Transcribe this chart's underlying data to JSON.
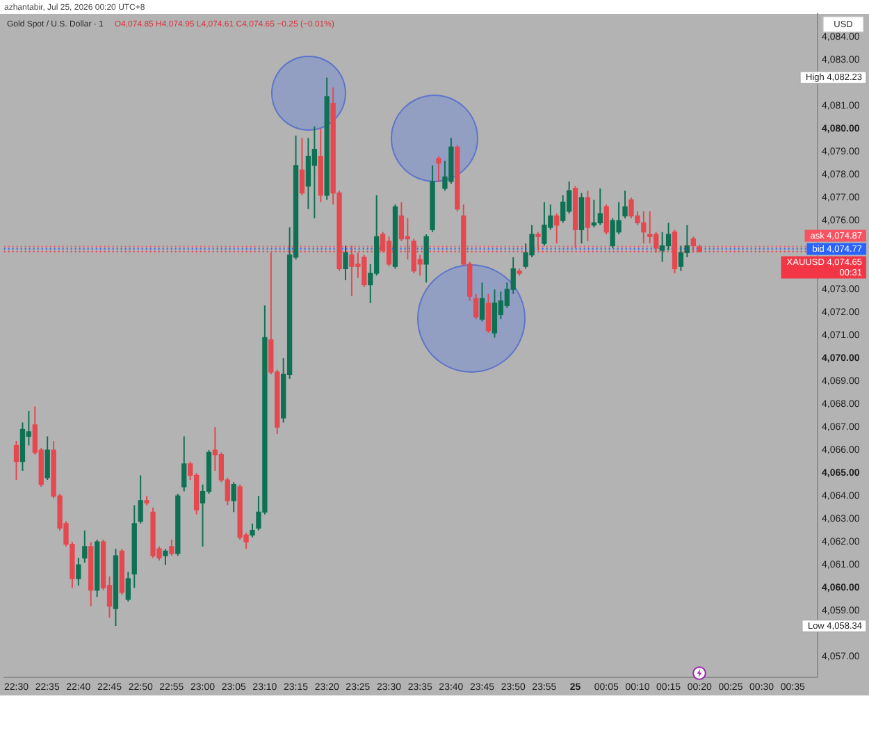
{
  "chart_data": {
    "type": "candlestick",
    "title": "Gold Spot / U.S. Dollar · 1",
    "subtitle": "O4,074.85 H4,074.95 L4,074.61 C4,074.65 −0.25 (−0.01%)",
    "ylabel": "USD",
    "annotations": [
      "azhantabir, Jul 25, 2026 00:20 UTC+8",
      "00:31",
      "High 4,082.23",
      "Low 4,058.34"
    ],
    "x": [
      "2026-07-24T22:30",
      "2026-07-24T22:31",
      "2026-07-24T22:32",
      "2026-07-24T22:33",
      "2026-07-24T22:34",
      "2026-07-24T22:35",
      "2026-07-24T22:36",
      "2026-07-24T22:37",
      "2026-07-24T22:38",
      "2026-07-24T22:39",
      "2026-07-24T22:40",
      "2026-07-24T22:41",
      "2026-07-24T22:42",
      "2026-07-24T22:43",
      "2026-07-24T22:44",
      "2026-07-24T22:45",
      "2026-07-24T22:46",
      "2026-07-24T22:47",
      "2026-07-24T22:48",
      "2026-07-24T22:49",
      "2026-07-24T22:50",
      "2026-07-24T22:51",
      "2026-07-24T22:52",
      "2026-07-24T22:53",
      "2026-07-24T22:54",
      "2026-07-24T22:55",
      "2026-07-24T22:56",
      "2026-07-24T22:57",
      "2026-07-24T22:58",
      "2026-07-24T22:59",
      "2026-07-24T23:00",
      "2026-07-24T23:01",
      "2026-07-24T23:02",
      "2026-07-24T23:03",
      "2026-07-24T23:04",
      "2026-07-24T23:05",
      "2026-07-24T23:06",
      "2026-07-24T23:07",
      "2026-07-24T23:08",
      "2026-07-24T23:09",
      "2026-07-24T23:10",
      "2026-07-24T23:11",
      "2026-07-24T23:12",
      "2026-07-24T23:13",
      "2026-07-24T23:14",
      "2026-07-24T23:15",
      "2026-07-24T23:16",
      "2026-07-24T23:17",
      "2026-07-24T23:18",
      "2026-07-24T23:19",
      "2026-07-24T23:20",
      "2026-07-24T23:21",
      "2026-07-24T23:22",
      "2026-07-24T23:23",
      "2026-07-24T23:24",
      "2026-07-24T23:25",
      "2026-07-24T23:26",
      "2026-07-24T23:27",
      "2026-07-24T23:28",
      "2026-07-24T23:29",
      "2026-07-24T23:30",
      "2026-07-24T23:31",
      "2026-07-24T23:32",
      "2026-07-24T23:33",
      "2026-07-24T23:34",
      "2026-07-24T23:35",
      "2026-07-24T23:36",
      "2026-07-24T23:37",
      "2026-07-24T23:38",
      "2026-07-24T23:39",
      "2026-07-24T23:40",
      "2026-07-24T23:41",
      "2026-07-24T23:42",
      "2026-07-24T23:43",
      "2026-07-24T23:44",
      "2026-07-24T23:45",
      "2026-07-24T23:46",
      "2026-07-24T23:47",
      "2026-07-24T23:48",
      "2026-07-24T23:49",
      "2026-07-24T23:50",
      "2026-07-24T23:51",
      "2026-07-24T23:52",
      "2026-07-24T23:53",
      "2026-07-24T23:54",
      "2026-07-24T23:55",
      "2026-07-24T23:56",
      "2026-07-24T23:57",
      "2026-07-24T23:58",
      "2026-07-24T23:59",
      "2026-07-25T00:00",
      "2026-07-25T00:01",
      "2026-07-25T00:02",
      "2026-07-25T00:03",
      "2026-07-25T00:04",
      "2026-07-25T00:05",
      "2026-07-25T00:06",
      "2026-07-25T00:07",
      "2026-07-25T00:08",
      "2026-07-25T00:09",
      "2026-07-25T00:10",
      "2026-07-25T00:11",
      "2026-07-25T00:12",
      "2026-07-25T00:13",
      "2026-07-25T00:14",
      "2026-07-25T00:15",
      "2026-07-25T00:16",
      "2026-07-25T00:17",
      "2026-07-25T00:18",
      "2026-07-25T00:19",
      "2026-07-25T00:20"
    ],
    "ohlc": [
      [
        4066.2,
        4066.4,
        4064.7,
        4065.5
      ],
      [
        4065.5,
        4067.2,
        4065.1,
        4066.9
      ],
      [
        4066.6,
        4067.7,
        4066.2,
        4066.8
      ],
      [
        4067.1,
        4067.9,
        4065.8,
        4065.9
      ],
      [
        4066.0,
        4066.1,
        4064.4,
        4064.5
      ],
      [
        4064.8,
        4066.6,
        4064.7,
        4066.0
      ],
      [
        4066.0,
        4066.4,
        4063.9,
        4064.0
      ],
      [
        4064.0,
        4064.1,
        4062.5,
        4062.6
      ],
      [
        4062.8,
        4062.9,
        4061.8,
        4061.9
      ],
      [
        4061.9,
        4062.0,
        4060.0,
        4060.4
      ],
      [
        4060.4,
        4061.3,
        4060.1,
        4061.0
      ],
      [
        4061.3,
        4062.5,
        4061.1,
        4061.8
      ],
      [
        4061.8,
        4062.0,
        4059.2,
        4059.9
      ],
      [
        4059.9,
        4062.1,
        4059.6,
        4062.0
      ],
      [
        4062.0,
        4062.1,
        4059.9,
        4060.0
      ],
      [
        4060.1,
        4060.5,
        4058.7,
        4059.2
      ],
      [
        4059.1,
        4061.7,
        4058.34,
        4061.4
      ],
      [
        4061.6,
        4061.7,
        4059.7,
        4059.8
      ],
      [
        4059.5,
        4060.7,
        4059.4,
        4060.4
      ],
      [
        4060.6,
        4063.6,
        4060.0,
        4062.8
      ],
      [
        4062.9,
        4064.9,
        4062.8,
        4063.8
      ],
      [
        4063.8,
        4064.0,
        4063.6,
        4063.7
      ],
      [
        4063.3,
        4063.5,
        4061.3,
        4061.4
      ],
      [
        4061.7,
        4061.8,
        4061.2,
        4061.3
      ],
      [
        4061.4,
        4061.7,
        4061.0,
        4061.6
      ],
      [
        4061.8,
        4062.1,
        4061.4,
        4061.5
      ],
      [
        4061.5,
        4064.1,
        4061.4,
        4064.0
      ],
      [
        4064.4,
        4066.6,
        4064.2,
        4065.4
      ],
      [
        4065.4,
        4065.5,
        4064.7,
        4064.9
      ],
      [
        4064.9,
        4065.0,
        4063.2,
        4063.4
      ],
      [
        4063.7,
        4064.5,
        4061.8,
        4064.2
      ],
      [
        4064.2,
        4066.0,
        4064.1,
        4065.9
      ],
      [
        4066.0,
        4067.0,
        4065.1,
        4065.8
      ],
      [
        4065.8,
        4065.9,
        4064.6,
        4064.7
      ],
      [
        4064.7,
        4064.8,
        4063.6,
        4063.8
      ],
      [
        4063.8,
        4064.6,
        4063.3,
        4064.5
      ],
      [
        4064.4,
        4064.5,
        4062.1,
        4062.2
      ],
      [
        4062.3,
        4062.4,
        4061.7,
        4062.0
      ],
      [
        4062.3,
        4062.8,
        4062.2,
        4062.5
      ],
      [
        4062.6,
        4064.0,
        4062.5,
        4063.3
      ],
      [
        4063.3,
        4072.3,
        4063.2,
        4070.9
      ],
      [
        4070.8,
        4074.6,
        4069.3,
        4069.4
      ],
      [
        4069.4,
        4069.5,
        4066.7,
        4067.0
      ],
      [
        4067.4,
        4070.0,
        4067.2,
        4069.3
      ],
      [
        4069.3,
        4075.7,
        4069.1,
        4074.5
      ],
      [
        4074.4,
        4079.7,
        4074.3,
        4078.4
      ],
      [
        4078.2,
        4079.6,
        4077.1,
        4077.2
      ],
      [
        4077.5,
        4079.6,
        4076.5,
        4078.8
      ],
      [
        4078.4,
        4080.1,
        4076.1,
        4079.1
      ],
      [
        4078.8,
        4080.0,
        4076.8,
        4077.1
      ],
      [
        4077.1,
        4082.23,
        4076.9,
        4081.4
      ],
      [
        4081.1,
        4081.8,
        4076.7,
        4077.2
      ],
      [
        4077.2,
        4077.3,
        4073.8,
        4073.9
      ],
      [
        4073.9,
        4074.9,
        4073.4,
        4074.6
      ],
      [
        4074.5,
        4074.9,
        4072.7,
        4074.0
      ],
      [
        4074.1,
        4074.6,
        4073.5,
        4074.0
      ],
      [
        4074.4,
        4074.5,
        4073.1,
        4073.2
      ],
      [
        4073.2,
        4074.1,
        4072.4,
        4073.7
      ],
      [
        4073.7,
        4077.1,
        4073.6,
        4075.3
      ],
      [
        4075.4,
        4075.5,
        4074.6,
        4074.7
      ],
      [
        4075.1,
        4075.3,
        4074.0,
        4074.1
      ],
      [
        4074.0,
        4076.7,
        4073.9,
        4076.6
      ],
      [
        4076.2,
        4076.8,
        4075.1,
        4075.2
      ],
      [
        4075.3,
        4076.1,
        4074.3,
        4075.2
      ],
      [
        4075.1,
        4075.2,
        4073.7,
        4073.8
      ],
      [
        4074.3,
        4074.5,
        4073.6,
        4074.1
      ],
      [
        4074.1,
        4075.4,
        4073.3,
        4075.3
      ],
      [
        4075.6,
        4078.4,
        4075.5,
        4077.7
      ],
      [
        4078.7,
        4078.8,
        4077.7,
        4078.5
      ],
      [
        4077.4,
        4078.6,
        4077.3,
        4077.9
      ],
      [
        4077.7,
        4079.6,
        4077.6,
        4079.2
      ],
      [
        4079.2,
        4079.3,
        4076.4,
        4076.5
      ],
      [
        4076.2,
        4076.7,
        4074.0,
        4074.1
      ],
      [
        4074.1,
        4074.2,
        4072.5,
        4072.7
      ],
      [
        4072.6,
        4072.8,
        4071.7,
        4071.8
      ],
      [
        4071.7,
        4073.3,
        4071.6,
        4072.6
      ],
      [
        4072.4,
        4072.8,
        4071.1,
        4071.2
      ],
      [
        4071.1,
        4073.0,
        4070.9,
        4072.4
      ],
      [
        4071.9,
        4072.9,
        4071.7,
        4072.5
      ],
      [
        4072.3,
        4073.3,
        4072.2,
        4073.0
      ],
      [
        4073.0,
        4074.4,
        4072.8,
        4073.9
      ],
      [
        4073.8,
        4073.9,
        4073.6,
        4073.7
      ],
      [
        4074.0,
        4075.0,
        4073.9,
        4074.6
      ],
      [
        4074.5,
        4075.8,
        4074.4,
        4075.4
      ],
      [
        4075.4,
        4075.5,
        4074.7,
        4075.3
      ],
      [
        4075.0,
        4076.8,
        4074.9,
        4075.8
      ],
      [
        4075.7,
        4076.7,
        4075.6,
        4076.2
      ],
      [
        4076.2,
        4076.3,
        4075.0,
        4075.8
      ],
      [
        4076.0,
        4077.1,
        4075.9,
        4076.8
      ],
      [
        4076.4,
        4077.7,
        4076.3,
        4077.3
      ],
      [
        4077.4,
        4077.5,
        4074.8,
        4075.6
      ],
      [
        4075.6,
        4077.2,
        4075.0,
        4077.0
      ],
      [
        4077.0,
        4077.3,
        4075.1,
        4075.7
      ],
      [
        4075.8,
        4076.9,
        4075.7,
        4075.9
      ],
      [
        4075.9,
        4077.4,
        4075.8,
        4076.3
      ],
      [
        4076.6,
        4076.7,
        4075.4,
        4075.5
      ],
      [
        4074.9,
        4076.1,
        4074.8,
        4076.0
      ],
      [
        4075.5,
        4076.8,
        4075.4,
        4076.0
      ],
      [
        4076.2,
        4077.3,
        4076.1,
        4076.6
      ],
      [
        4076.9,
        4077.0,
        4076.1,
        4076.2
      ],
      [
        4076.2,
        4076.4,
        4075.8,
        4075.9
      ],
      [
        4075.9,
        4076.4,
        4075.0,
        4075.5
      ],
      [
        4075.4,
        4076.4,
        4075.0,
        4075.3
      ],
      [
        4075.4,
        4075.5,
        4074.6,
        4074.8
      ],
      [
        4074.7,
        4075.5,
        4074.2,
        4074.9
      ],
      [
        4074.9,
        4075.9,
        4074.7,
        4075.4
      ],
      [
        4075.5,
        4075.6,
        4073.7,
        4073.9
      ],
      [
        4074.0,
        4074.9,
        4073.8,
        4074.6
      ],
      [
        4074.6,
        4075.8,
        4074.4,
        4074.9
      ],
      [
        4075.2,
        4075.3,
        4074.6,
        4074.9
      ],
      [
        4074.85,
        4074.95,
        4074.61,
        4074.65
      ]
    ],
    "colors": [
      "#e5484f",
      "#0f7154",
      "#0f7154",
      "#e5484f",
      "#e5484f",
      "#0f7154",
      "#e5484f",
      "#e5484f",
      "#e5484f",
      "#e5484f",
      "#0f7154",
      "#0f7154",
      "#e5484f",
      "#0f7154",
      "#e5484f",
      "#e5484f",
      "#0f7154",
      "#e5484f",
      "#0f7154",
      "#0f7154",
      "#0f7154",
      "#e5484f",
      "#e5484f",
      "#e5484f",
      "#0f7154",
      "#e5484f",
      "#0f7154",
      "#0f7154",
      "#e5484f",
      "#e5484f",
      "#0f7154",
      "#0f7154",
      "#e5484f",
      "#e5484f",
      "#e5484f",
      "#0f7154",
      "#e5484f",
      "#e5484f",
      "#0f7154",
      "#0f7154",
      "#0f7154",
      "#e5484f",
      "#e5484f",
      "#0f7154",
      "#0f7154",
      "#0f7154",
      "#e5484f",
      "#0f7154",
      "#0f7154",
      "#e5484f",
      "#0f7154",
      "#e5484f",
      "#e5484f",
      "#0f7154",
      "#e5484f",
      "#e5484f",
      "#e5484f",
      "#0f7154",
      "#0f7154",
      "#e5484f",
      "#e5484f",
      "#0f7154",
      "#e5484f",
      "#e5484f",
      "#e5484f",
      "#e5484f",
      "#0f7154",
      "#0f7154",
      "#e5484f",
      "#0f7154",
      "#0f7154",
      "#e5484f",
      "#e5484f",
      "#e5484f",
      "#e5484f",
      "#0f7154",
      "#e5484f",
      "#0f7154",
      "#0f7154",
      "#0f7154",
      "#0f7154",
      "#e5484f",
      "#0f7154",
      "#0f7154",
      "#e5484f",
      "#0f7154",
      "#0f7154",
      "#e5484f",
      "#0f7154",
      "#0f7154",
      "#e5484f",
      "#0f7154",
      "#e5484f",
      "#0f7154",
      "#0f7154",
      "#e5484f",
      "#0f7154",
      "#0f7154",
      "#0f7154",
      "#e5484f",
      "#e5484f",
      "#e5484f",
      "#e5484f",
      "#e5484f",
      "#0f7154",
      "#0f7154",
      "#e5484f",
      "#0f7154",
      "#0f7154",
      "#e5484f",
      "#e5484f"
    ],
    "xlim": [
      "2026-07-24T22:28",
      "2026-07-25T00:39"
    ],
    "xticks": [
      {
        "value": "2026-07-24T22:30",
        "label": "22:30"
      },
      {
        "value": "2026-07-24T22:35",
        "label": "22:35"
      },
      {
        "value": "2026-07-24T22:40",
        "label": "22:40"
      },
      {
        "value": "2026-07-24T22:45",
        "label": "22:45"
      },
      {
        "value": "2026-07-24T22:50",
        "label": "22:50"
      },
      {
        "value": "2026-07-24T22:55",
        "label": "22:55"
      },
      {
        "value": "2026-07-24T23:00",
        "label": "23:00"
      },
      {
        "value": "2026-07-24T23:05",
        "label": "23:05"
      },
      {
        "value": "2026-07-24T23:10",
        "label": "23:10"
      },
      {
        "value": "2026-07-24T23:15",
        "label": "23:15"
      },
      {
        "value": "2026-07-24T23:20",
        "label": "23:20"
      },
      {
        "value": "2026-07-24T23:25",
        "label": "23:25"
      },
      {
        "value": "2026-07-24T23:30",
        "label": "23:30"
      },
      {
        "value": "2026-07-24T23:35",
        "label": "23:35"
      },
      {
        "value": "2026-07-24T23:40",
        "label": "23:40"
      },
      {
        "value": "2026-07-24T23:45",
        "label": "23:45"
      },
      {
        "value": "2026-07-24T23:50",
        "label": "23:50"
      },
      {
        "value": "2026-07-24T23:55",
        "label": "23:55"
      },
      {
        "value": "2026-07-25T00:00",
        "label": "25"
      },
      {
        "value": "2026-07-25T00:05",
        "label": "00:05"
      },
      {
        "value": "2026-07-25T00:10",
        "label": "00:10"
      },
      {
        "value": "2026-07-25T00:15",
        "label": "00:15"
      },
      {
        "value": "2026-07-25T00:20",
        "label": "00:20"
      },
      {
        "value": "2026-07-25T00:25",
        "label": "00:25"
      },
      {
        "value": "2026-07-25T00:30",
        "label": "00:30"
      },
      {
        "value": "2026-07-25T00:35",
        "label": "00:35"
      }
    ],
    "ylim": [
      4056.1,
      4085.0
    ],
    "yticks": [
      {
        "value": 4057,
        "label": "4,057.00"
      },
      {
        "value": 4059,
        "label": "4,059.00"
      },
      {
        "value": 4060,
        "label": "4,060.00"
      },
      {
        "value": 4061,
        "label": "4,061.00"
      },
      {
        "value": 4062,
        "label": "4,062.00"
      },
      {
        "value": 4063,
        "label": "4,063.00"
      },
      {
        "value": 4064,
        "label": "4,064.00"
      },
      {
        "value": 4065,
        "label": "4,065.00"
      },
      {
        "value": 4066,
        "label": "4,066.00"
      },
      {
        "value": 4067,
        "label": "4,067.00"
      },
      {
        "value": 4068,
        "label": "4,068.00"
      },
      {
        "value": 4069,
        "label": "4,069.00"
      },
      {
        "value": 4070,
        "label": "4,070.00"
      },
      {
        "value": 4071,
        "label": "4,071.00"
      },
      {
        "value": 4072,
        "label": "4,072.00"
      },
      {
        "value": 4073,
        "label": "4,073.00"
      },
      {
        "value": 4076,
        "label": "4,076.00"
      },
      {
        "value": 4077,
        "label": "4,077.00"
      },
      {
        "value": 4078,
        "label": "4,078.00"
      },
      {
        "value": 4079,
        "label": "4,079.00"
      },
      {
        "value": 4080,
        "label": "4,080.00"
      },
      {
        "value": 4081,
        "label": "4,081.00"
      },
      {
        "value": 4083,
        "label": "4,083.00"
      },
      {
        "value": 4084,
        "label": "4,084.00"
      }
    ],
    "ref_lines": [
      {
        "axis": "y",
        "value": 4074.87,
        "label": "ask 4,074.87",
        "color": "#f7525f",
        "line_style": "dotted"
      },
      {
        "axis": "y",
        "value": 4074.77,
        "label": "bid 4,074.77",
        "color": "#2962ff",
        "line_style": "dotted"
      },
      {
        "axis": "y",
        "value": 4074.65,
        "label": "XAUUSD 4,074.65",
        "color": "#f23645",
        "line_style": "dotted"
      }
    ],
    "grid": false
  }
}
